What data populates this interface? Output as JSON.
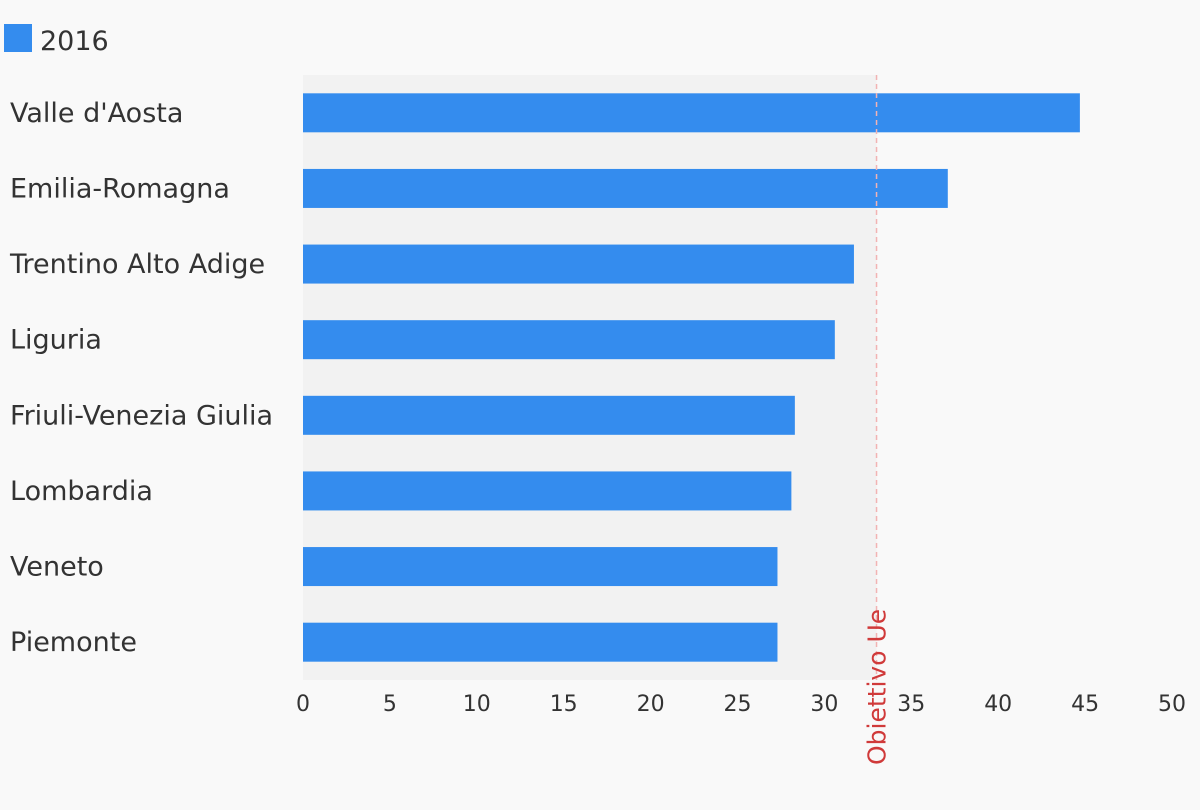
{
  "chart_data": {
    "type": "bar",
    "orientation": "horizontal",
    "categories": [
      "Valle d'Aosta",
      "Emilia-Romagna",
      "Trentino Alto Adige",
      "Liguria",
      "Friuli-Venezia Giulia",
      "Lombardia",
      "Veneto",
      "Piemonte"
    ],
    "series": [
      {
        "name": "2016",
        "color": "#348cee",
        "values": [
          44.7,
          37.1,
          31.7,
          30.6,
          28.3,
          28.1,
          27.3,
          27.3
        ]
      }
    ],
    "xlim": [
      0,
      50
    ],
    "xticks": [
      0,
      5,
      10,
      15,
      20,
      25,
      30,
      35,
      40,
      45,
      50
    ],
    "reference_line": {
      "value": 33,
      "label": "Obiettivo Ue",
      "color": "#d03a3a"
    },
    "shaded_region": {
      "from": 0,
      "to": 33,
      "color": "#f2f2f2"
    },
    "legend_position": "top-left",
    "grid": false
  }
}
